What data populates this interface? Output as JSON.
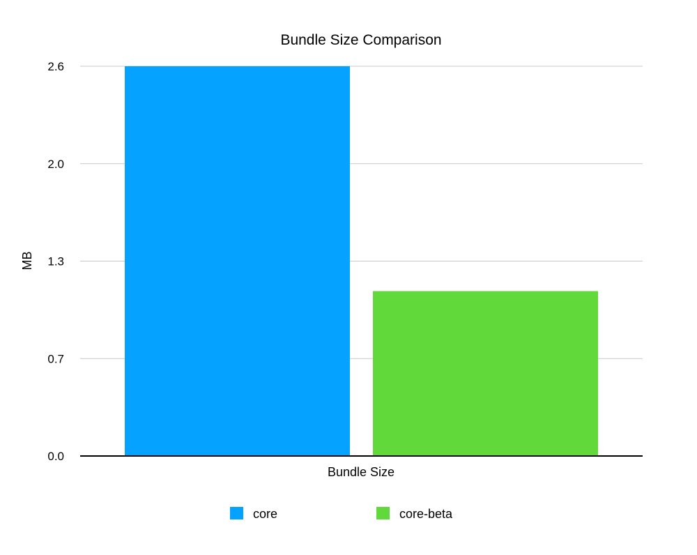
{
  "chart_data": {
    "type": "bar",
    "title": "Bundle Size Comparison",
    "xlabel": "Bundle Size",
    "ylabel": "MB",
    "categories": [
      "Bundle Size"
    ],
    "series": [
      {
        "name": "core",
        "values": [
          2.6
        ],
        "color": "#05A2FF"
      },
      {
        "name": "core-beta",
        "values": [
          1.1
        ],
        "color": "#62D93A"
      }
    ],
    "ylim": [
      0,
      2.6
    ],
    "yticks": [
      0,
      0.65,
      1.3,
      1.95,
      2.6
    ],
    "ytick_labels": [
      "0.0",
      "0.7",
      "1.3",
      "2.0",
      "2.6"
    ],
    "grid": true,
    "legend": "bottom"
  }
}
